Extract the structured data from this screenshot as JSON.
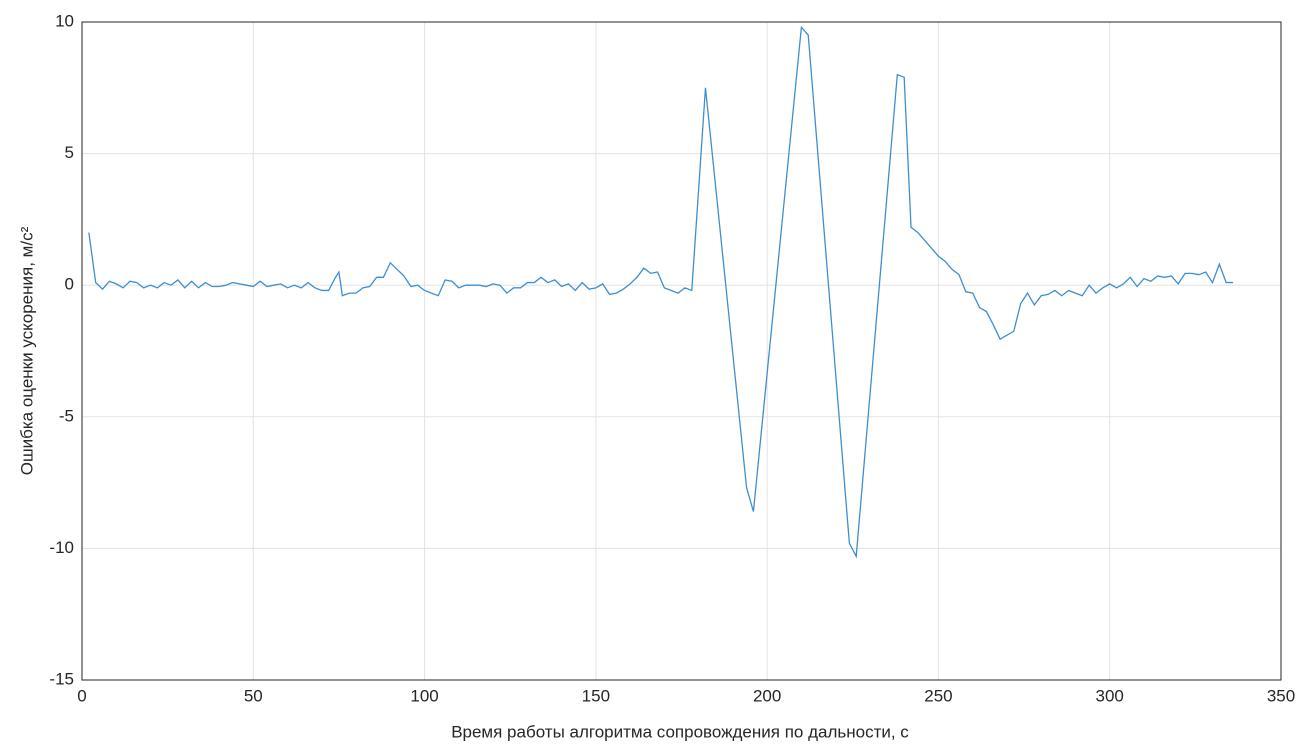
{
  "chart_data": {
    "type": "line",
    "xlabel": "Время работы алгоритма сопровождения по дальности, с",
    "ylabel": "Ошибка оценки ускорения, м/с²",
    "x": [
      2,
      4,
      6,
      8,
      10,
      12,
      14,
      16,
      18,
      20,
      22,
      24,
      26,
      28,
      30,
      32,
      34,
      36,
      38,
      40,
      42,
      44,
      46,
      48,
      50,
      52,
      54,
      56,
      58,
      60,
      62,
      64,
      66,
      68,
      70,
      72,
      74,
      75,
      76,
      78,
      80,
      82,
      84,
      86,
      88,
      90,
      92,
      94,
      96,
      98,
      100,
      102,
      104,
      106,
      108,
      110,
      112,
      114,
      116,
      118,
      120,
      122,
      124,
      126,
      128,
      130,
      132,
      134,
      136,
      138,
      140,
      142,
      144,
      146,
      148,
      150,
      152,
      154,
      156,
      158,
      160,
      162,
      164,
      166,
      168,
      170,
      172,
      174,
      176,
      178,
      182,
      194,
      196,
      210,
      212,
      224,
      226,
      238,
      240,
      242,
      244,
      246,
      248,
      250,
      252,
      254,
      256,
      258,
      260,
      262,
      264,
      266,
      268,
      270,
      272,
      274,
      276,
      278,
      280,
      282,
      284,
      286,
      288,
      290,
      292,
      294,
      296,
      298,
      300,
      302,
      304,
      306,
      308,
      310,
      312,
      314,
      316,
      318,
      320,
      322,
      324,
      326,
      328,
      330,
      332,
      334,
      336
    ],
    "series": [
      {
        "color": "#3d8fd1",
        "values": [
          2.0,
          0.1,
          -0.15,
          0.15,
          0.05,
          -0.1,
          0.15,
          0.1,
          -0.1,
          0.0,
          -0.1,
          0.1,
          0.0,
          0.2,
          -0.1,
          0.15,
          -0.1,
          0.1,
          -0.05,
          -0.05,
          0.0,
          0.1,
          0.05,
          0.0,
          -0.05,
          0.15,
          -0.05,
          0.0,
          0.05,
          -0.1,
          0.0,
          -0.1,
          0.1,
          -0.1,
          -0.2,
          -0.2,
          0.3,
          0.5,
          -0.4,
          -0.3,
          -0.3,
          -0.1,
          -0.05,
          0.3,
          0.3,
          0.85,
          0.6,
          0.35,
          -0.05,
          0.0,
          -0.2,
          -0.3,
          -0.4,
          0.2,
          0.15,
          -0.1,
          0.0,
          0.0,
          0.0,
          -0.05,
          0.05,
          0.0,
          -0.3,
          -0.1,
          -0.1,
          0.1,
          0.1,
          0.3,
          0.1,
          0.2,
          -0.05,
          0.05,
          -0.2,
          0.1,
          -0.15,
          -0.1,
          0.05,
          -0.35,
          -0.3,
          -0.15,
          0.05,
          0.3,
          0.65,
          0.45,
          0.5,
          -0.1,
          -0.2,
          -0.3,
          -0.1,
          -0.2,
          7.5,
          -7.7,
          -8.6,
          9.8,
          9.5,
          -9.8,
          -10.3,
          8.0,
          7.9,
          2.2,
          2.0,
          1.7,
          1.4,
          1.1,
          0.9,
          0.6,
          0.4,
          -0.25,
          -0.3,
          -0.85,
          -1.0,
          -1.5,
          -2.05,
          -1.9,
          -1.75,
          -0.7,
          -0.3,
          -0.75,
          -0.4,
          -0.35,
          -0.2,
          -0.4,
          -0.2,
          -0.3,
          -0.4,
          0.0,
          -0.3,
          -0.1,
          0.05,
          -0.1,
          0.05,
          0.3,
          -0.05,
          0.25,
          0.15,
          0.35,
          0.3,
          0.35,
          0.05,
          0.45,
          0.45,
          0.4,
          0.5,
          0.1,
          0.8,
          0.1,
          0.1
        ]
      }
    ],
    "xlim": [
      0,
      350
    ],
    "xticks": [
      0,
      50,
      100,
      150,
      200,
      250,
      300,
      350
    ],
    "ylim": [
      -15,
      10
    ],
    "yticks": [
      -15,
      -10,
      -5,
      0,
      5,
      10
    ],
    "grid": true
  }
}
